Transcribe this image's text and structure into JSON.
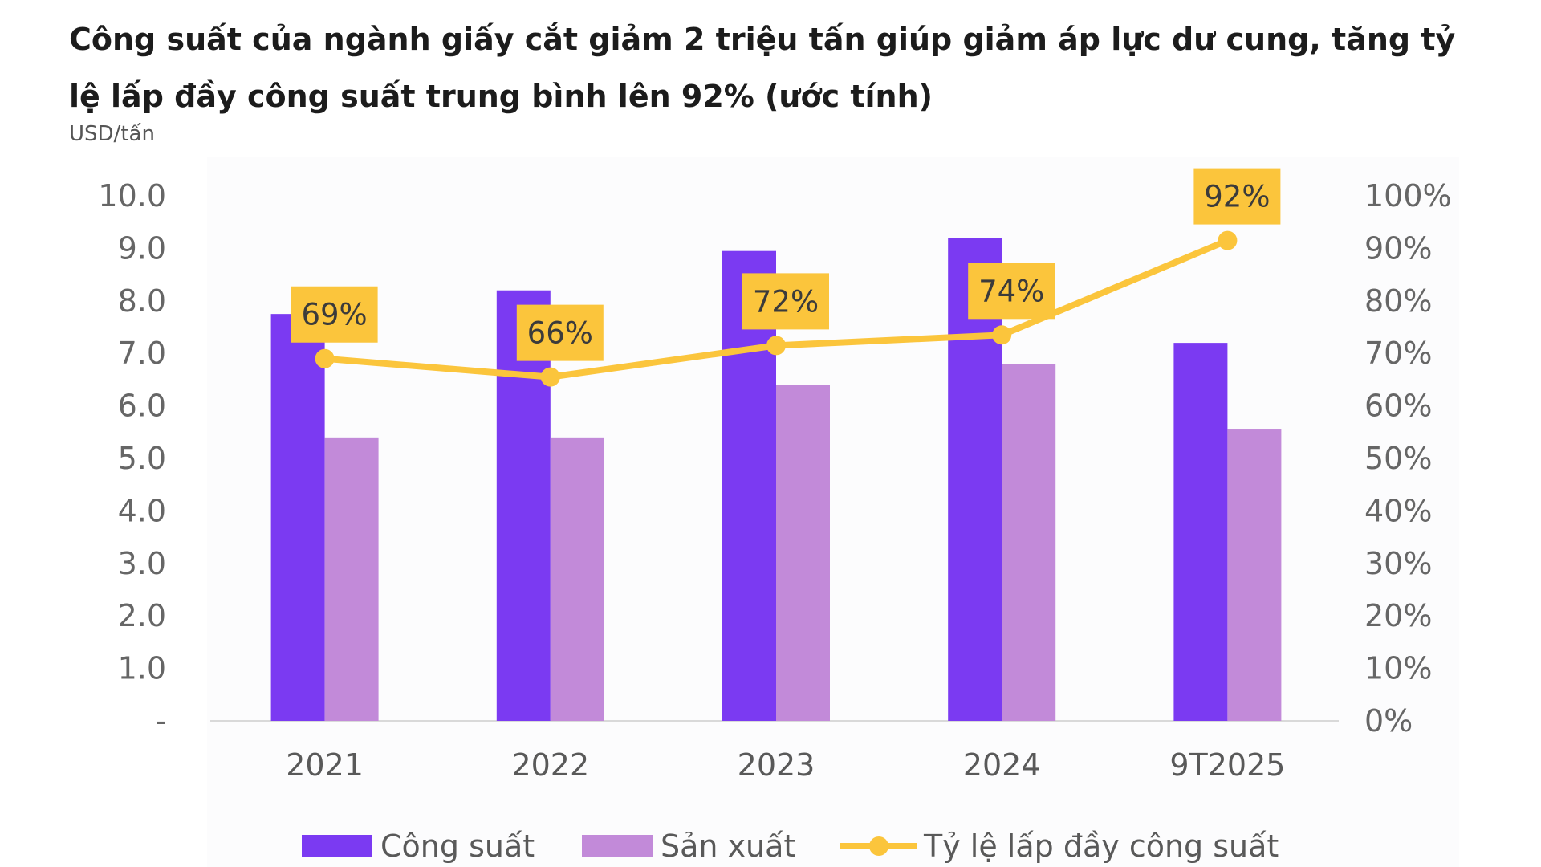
{
  "chart_data": {
    "type": "bar",
    "title": "Công suất của ngành giấy cắt giảm 2 triệu tấn giúp giảm áp lực dư cung, tăng tỷ lệ lấp đầy công suất trung bình lên 92% (ước tính)",
    "ylabel": "USD/tấn",
    "categories": [
      "2021",
      "2022",
      "2023",
      "2024",
      "9T2025"
    ],
    "ylim": [
      0,
      10
    ],
    "y2lim": [
      0,
      1
    ],
    "y_ticks": [
      "-",
      "1.0",
      "2.0",
      "3.0",
      "4.0",
      "5.0",
      "6.0",
      "7.0",
      "8.0",
      "9.0",
      "10.0"
    ],
    "y2_ticks": [
      "0%",
      "10%",
      "20%",
      "30%",
      "40%",
      "50%",
      "60%",
      "70%",
      "80%",
      "90%",
      "100%"
    ],
    "series": [
      {
        "name": "Công suất",
        "type": "bar",
        "axis": "left",
        "color": "#7b3af2",
        "values": [
          7.75,
          8.2,
          8.95,
          9.2,
          7.2
        ]
      },
      {
        "name": "Sản xuất",
        "type": "bar",
        "axis": "left",
        "color": "#c28ad9",
        "values": [
          5.4,
          5.4,
          6.4,
          6.8,
          5.55
        ]
      },
      {
        "name": "Tỷ lệ lấp đầy công suất",
        "type": "line",
        "axis": "right",
        "color": "#fbc53c",
        "values": [
          0.69,
          0.655,
          0.715,
          0.735,
          0.915
        ],
        "labels": [
          "69%",
          "66%",
          "72%",
          "74%",
          "92%"
        ]
      }
    ],
    "legend": "bottom",
    "grid": false
  }
}
